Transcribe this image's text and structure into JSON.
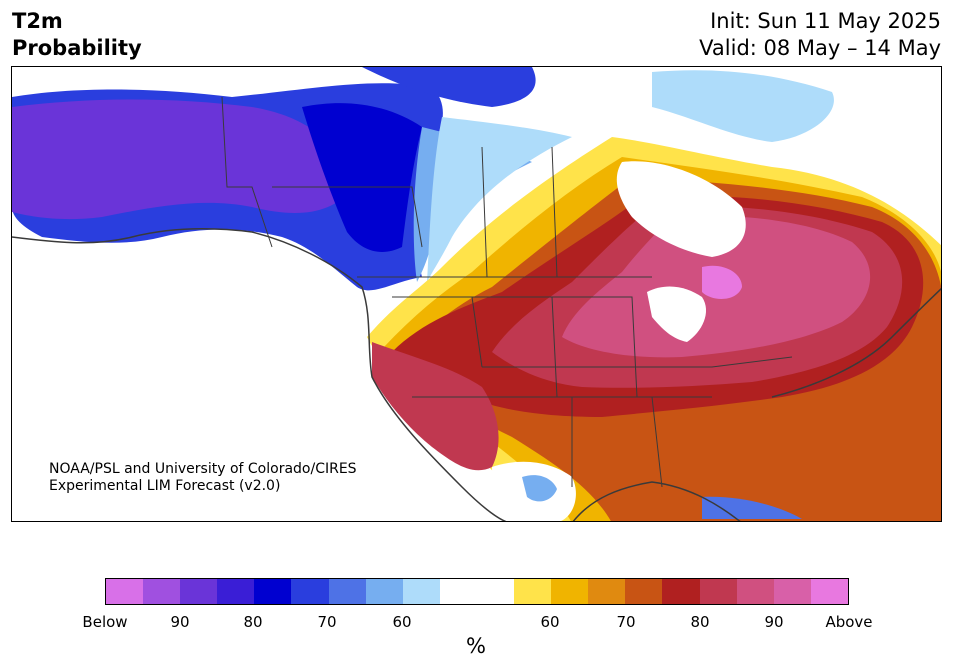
{
  "title": {
    "line1": "T2m",
    "line2": "Probability"
  },
  "init": {
    "line1": "Init: Sun 11 May 2025",
    "line2": "Valid: 08 May – 14 May"
  },
  "credit": {
    "line1": "NOAA/PSL and University of Colorado/CIRES",
    "line2": "Experimental LIM Forecast (v2.0)"
  },
  "colorbar": {
    "colors": [
      "#d870e8",
      "#a050e0",
      "#6a34d8",
      "#3a1ed6",
      "#0000d0",
      "#2a3ede",
      "#4e72e6",
      "#76aef0",
      "#aedcfa",
      "#ffffff",
      "#ffffff",
      "#ffe34a",
      "#f0b400",
      "#e08a10",
      "#c85414",
      "#b02020",
      "#c03850",
      "#d05080",
      "#d860a8",
      "#e878e0"
    ],
    "tick_labels": [
      "Below",
      "90",
      "80",
      "70",
      "60",
      "60",
      "70",
      "80",
      "90",
      "Above"
    ],
    "units": "%"
  },
  "map_colors": {
    "land": "#ffffff",
    "border": "#3a3a3a",
    "below_strong": "#0000d0",
    "below_purple": "#6a34d8",
    "below_blue": "#2a3ede",
    "below_light": "#76aef0",
    "below_pale": "#aedcfa",
    "above_yellow": "#ffe34a",
    "above_orange": "#f0b400",
    "above_dark_orange": "#c85414",
    "above_red": "#b02020",
    "above_crimson": "#c03850",
    "above_pink": "#d05080",
    "above_magenta": "#e878e0"
  }
}
